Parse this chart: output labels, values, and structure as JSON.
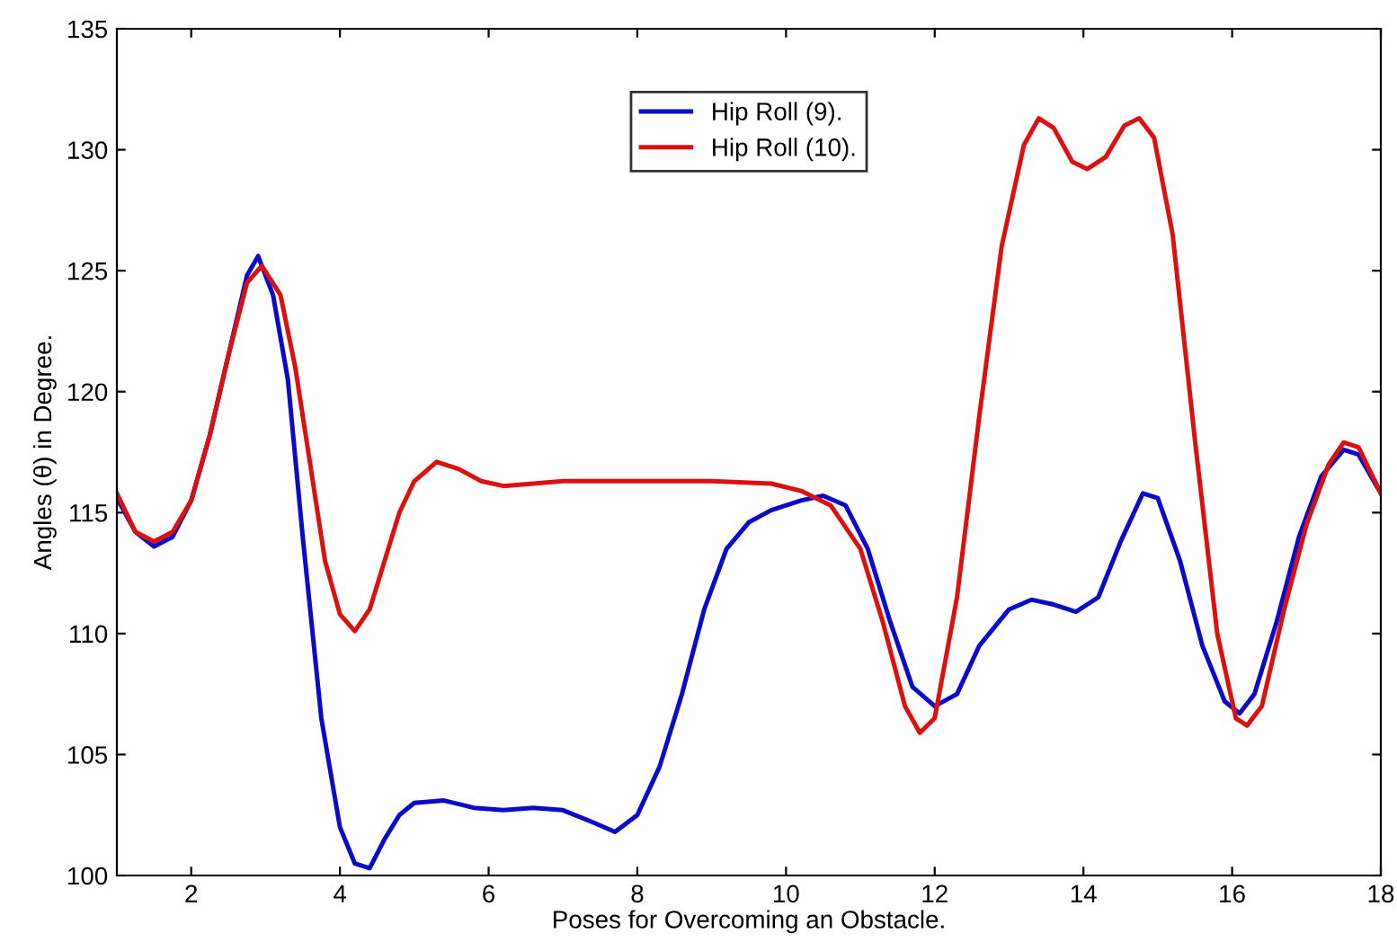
{
  "chart_data": {
    "type": "line",
    "xlabel": "Poses for Overcoming an Obstacle.",
    "ylabel": "Angles (θ) in Degree.",
    "xlim": [
      1,
      18
    ],
    "xticks": [
      2,
      4,
      6,
      8,
      10,
      12,
      14,
      16,
      18
    ],
    "ylim": [
      100,
      135
    ],
    "yticks": [
      100,
      105,
      110,
      115,
      120,
      125,
      130,
      135
    ],
    "grid": false,
    "legend": "top center",
    "marker": "none",
    "line_style": "solid",
    "series": [
      {
        "name": "Hip Roll (9).",
        "color": "#0a0ac8",
        "x": [
          1,
          1.25,
          1.5,
          1.75,
          2,
          2.25,
          2.5,
          2.75,
          2.9,
          3.1,
          3.3,
          3.5,
          3.75,
          4,
          4.2,
          4.4,
          4.6,
          4.8,
          5,
          5.4,
          5.8,
          6.2,
          6.6,
          7,
          7.4,
          7.7,
          8,
          8.3,
          8.6,
          8.9,
          9.2,
          9.5,
          9.8,
          10.2,
          10.5,
          10.8,
          11.1,
          11.4,
          11.7,
          12,
          12.3,
          12.6,
          13,
          13.3,
          13.6,
          13.9,
          14.2,
          14.5,
          14.8,
          15,
          15.3,
          15.6,
          15.9,
          16.1,
          16.3,
          16.6,
          16.9,
          17.2,
          17.5,
          17.7,
          18
        ],
        "values": [
          115.6,
          114.2,
          113.6,
          114,
          115.5,
          118.2,
          121.5,
          124.8,
          125.6,
          124,
          120.5,
          114,
          106.5,
          102,
          100.5,
          100.3,
          101.5,
          102.5,
          103,
          103.1,
          102.8,
          102.7,
          102.8,
          102.7,
          102.2,
          101.8,
          102.5,
          104.5,
          107.5,
          111,
          113.5,
          114.6,
          115.1,
          115.5,
          115.7,
          115.3,
          113.5,
          110.5,
          107.8,
          107,
          107.5,
          109.5,
          111,
          111.4,
          111.2,
          110.9,
          111.5,
          113.8,
          115.8,
          115.6,
          113,
          109.5,
          107.2,
          106.7,
          107.5,
          110.5,
          114,
          116.5,
          117.6,
          117.4,
          115.8
        ]
      },
      {
        "name": "Hip Roll (10).",
        "color": "#dd1010",
        "x": [
          1,
          1.25,
          1.5,
          1.75,
          2,
          2.25,
          2.5,
          2.75,
          2.95,
          3.2,
          3.4,
          3.6,
          3.8,
          4,
          4.2,
          4.4,
          4.6,
          4.8,
          5,
          5.3,
          5.6,
          5.9,
          6.2,
          6.6,
          7,
          8,
          9,
          9.8,
          10.2,
          10.6,
          11,
          11.3,
          11.6,
          11.8,
          12,
          12.3,
          12.6,
          12.9,
          13.2,
          13.4,
          13.6,
          13.85,
          14.05,
          14.3,
          14.55,
          14.75,
          14.95,
          15.2,
          15.5,
          15.8,
          16.05,
          16.2,
          16.4,
          16.7,
          17,
          17.3,
          17.5,
          17.7,
          18
        ],
        "values": [
          115.8,
          114.2,
          113.8,
          114.2,
          115.5,
          118.2,
          121.5,
          124.5,
          125.2,
          124,
          121,
          117,
          113,
          110.8,
          110.1,
          111,
          113,
          115,
          116.3,
          117.1,
          116.8,
          116.3,
          116.1,
          116.2,
          116.3,
          116.3,
          116.3,
          116.2,
          115.9,
          115.3,
          113.5,
          110.5,
          107,
          105.9,
          106.5,
          111.5,
          119,
          126,
          130.2,
          131.3,
          130.9,
          129.5,
          129.2,
          129.7,
          131,
          131.3,
          130.5,
          126.5,
          118,
          110,
          106.5,
          106.2,
          107,
          111,
          114.5,
          117,
          117.9,
          117.7,
          115.8
        ]
      }
    ]
  }
}
